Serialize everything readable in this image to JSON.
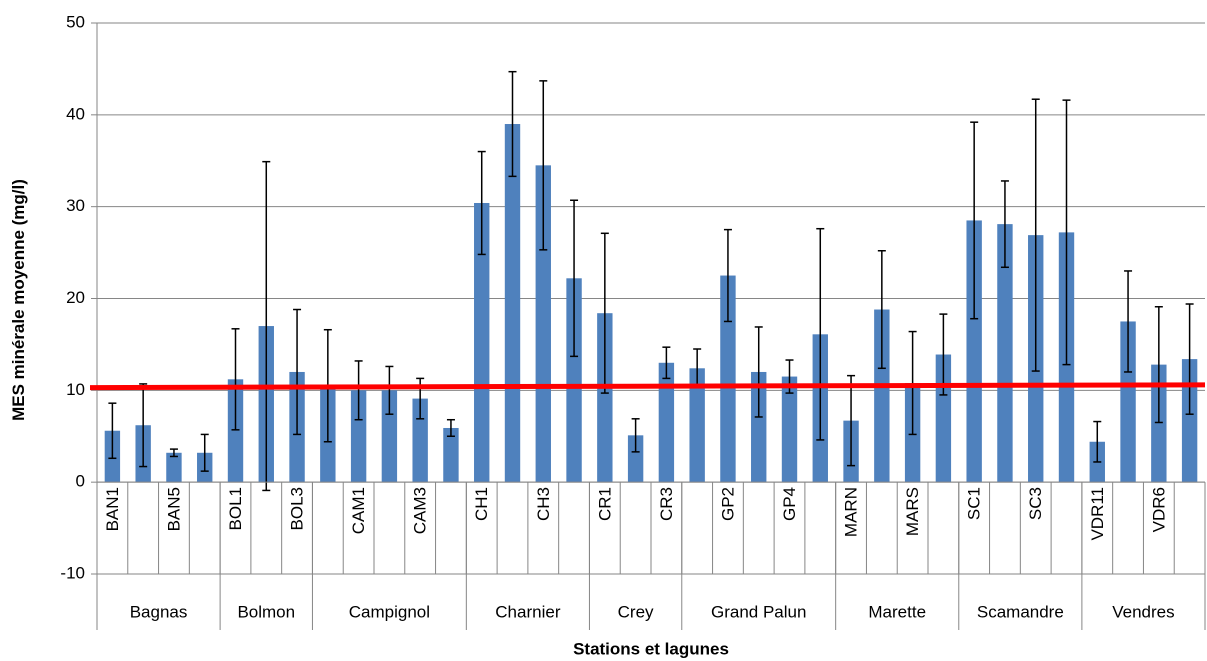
{
  "chart_data": {
    "type": "bar",
    "y_label": "MES minérale moyenne (mg/l)",
    "x_label": "Stations et lagunes",
    "categories": [
      "BAN1",
      null,
      "BAN5",
      null,
      "BOL1",
      null,
      "BOL3",
      null,
      "CAM1",
      null,
      "CAM3",
      null,
      "CH1",
      null,
      "CH3",
      null,
      "CR1",
      null,
      "CR3",
      null,
      "GP2",
      null,
      "GP4",
      null,
      "MARN",
      null,
      "MARS",
      null,
      "SC1",
      null,
      "SC3",
      null,
      "VDR11",
      null,
      "VDR6",
      null
    ],
    "groups": [
      {
        "name": "Bagnas",
        "size": 4
      },
      {
        "name": "Bolmon",
        "size": 3
      },
      {
        "name": "Campignol",
        "size": 5
      },
      {
        "name": "Charnier",
        "size": 4
      },
      {
        "name": "Crey",
        "size": 3
      },
      {
        "name": "Grand Palun",
        "size": 5
      },
      {
        "name": "Marette",
        "size": 4
      },
      {
        "name": "Scamandre",
        "size": 4
      },
      {
        "name": "Vendres",
        "size": 4
      }
    ],
    "values": [
      5.6,
      6.2,
      3.2,
      3.2,
      11.2,
      17.0,
      12.0,
      10.5,
      10.0,
      10.0,
      9.1,
      5.9,
      30.4,
      39.0,
      34.5,
      22.2,
      18.4,
      5.1,
      13.0,
      12.4,
      22.5,
      12.0,
      11.5,
      16.1,
      6.7,
      18.8,
      10.8,
      13.9,
      28.5,
      28.1,
      26.9,
      27.2,
      4.4,
      17.5,
      12.8,
      13.4
    ],
    "errors": [
      3.0,
      4.5,
      0.4,
      2.0,
      5.5,
      17.9,
      6.8,
      6.1,
      3.2,
      2.6,
      2.2,
      0.9,
      5.6,
      5.7,
      9.2,
      8.5,
      8.7,
      1.8,
      1.7,
      2.1,
      5.0,
      4.9,
      1.8,
      11.5,
      4.9,
      6.4,
      5.6,
      4.4,
      10.7,
      4.7,
      14.8,
      14.4,
      2.2,
      5.5,
      6.3,
      6.0
    ],
    "color": "#4f81bd",
    "reference_line": {
      "values": [
        10.3,
        10.6
      ],
      "color": "#ff0000"
    },
    "ylim": [
      -10,
      50
    ],
    "yticks": [
      -10,
      0,
      10,
      20,
      30,
      40,
      50
    ],
    "grid": true
  }
}
